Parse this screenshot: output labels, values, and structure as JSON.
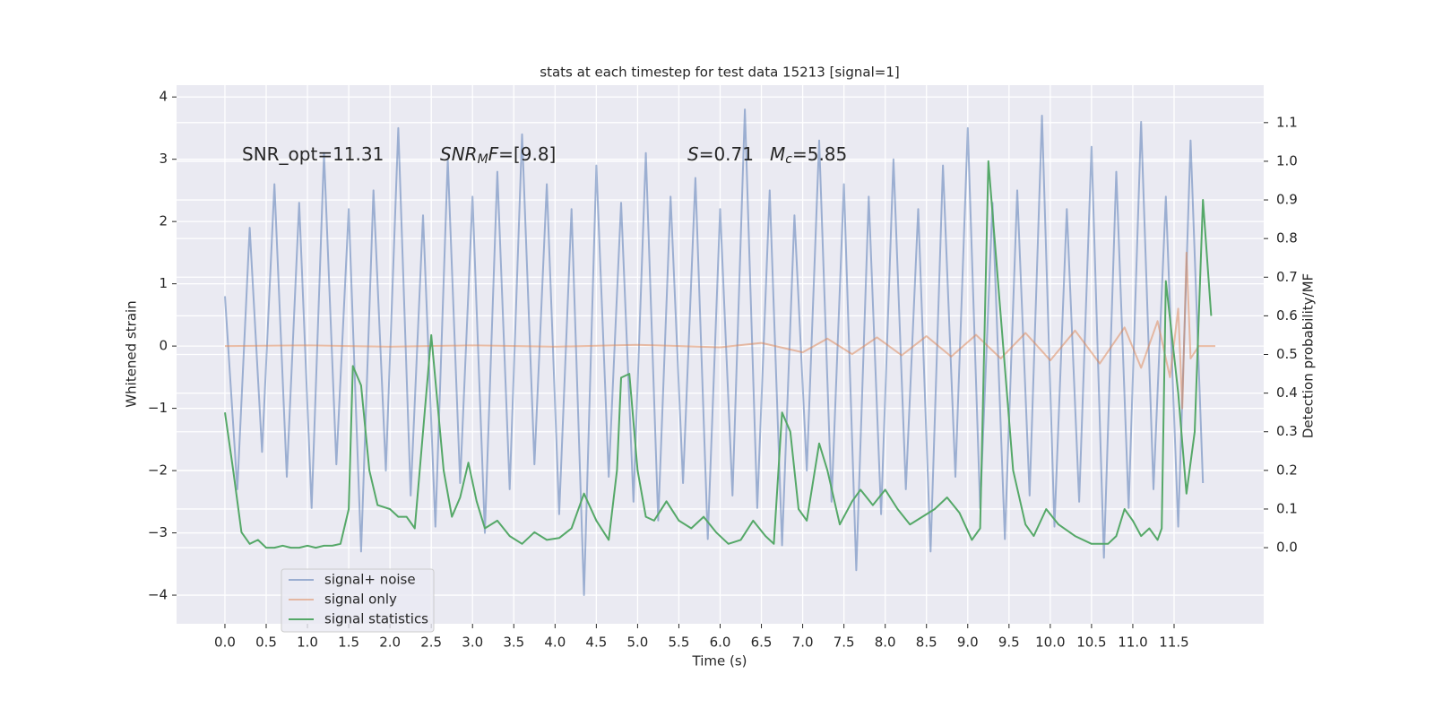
{
  "chart_data": {
    "type": "line",
    "title": "stats at each timestep for test data 15213 [signal=1]",
    "xlabel": "Time (s)",
    "ylabel": "Whitened strain",
    "y2label": "Detection probability/MF",
    "xlim": [
      -0.586,
      12.586
    ],
    "ylim": [
      -4.46,
      4.19
    ],
    "y2lim": [
      -0.197,
      1.197
    ],
    "grid": true,
    "legend": "lower left",
    "xticks": [
      {
        "value": 0,
        "label": "0.0"
      },
      {
        "value": 0.5,
        "label": "0.5"
      },
      {
        "value": 1,
        "label": "1.0"
      },
      {
        "value": 1.5,
        "label": "1.5"
      },
      {
        "value": 2,
        "label": "2.0"
      },
      {
        "value": 2.5,
        "label": "2.5"
      },
      {
        "value": 3,
        "label": "3.0"
      },
      {
        "value": 3.5,
        "label": "3.5"
      },
      {
        "value": 4,
        "label": "4.0"
      },
      {
        "value": 4.5,
        "label": "4.5"
      },
      {
        "value": 5,
        "label": "5.0"
      },
      {
        "value": 5.5,
        "label": "5.5"
      },
      {
        "value": 6,
        "label": "6.0"
      },
      {
        "value": 6.5,
        "label": "6.5"
      },
      {
        "value": 7,
        "label": "7.0"
      },
      {
        "value": 7.5,
        "label": "7.5"
      },
      {
        "value": 8,
        "label": "8.0"
      },
      {
        "value": 8.5,
        "label": "8.5"
      },
      {
        "value": 9,
        "label": "9.0"
      },
      {
        "value": 9.5,
        "label": "9.5"
      },
      {
        "value": 10,
        "label": "10.0"
      },
      {
        "value": 10.5,
        "label": "10.5"
      },
      {
        "value": 11,
        "label": "11.0"
      },
      {
        "value": 11.5,
        "label": "11.5"
      }
    ],
    "yticks": [
      {
        "value": -4,
        "label": "−4"
      },
      {
        "value": -3,
        "label": "−3"
      },
      {
        "value": -2,
        "label": "−2"
      },
      {
        "value": -1,
        "label": "−1"
      },
      0,
      1,
      2,
      3,
      4
    ],
    "y2ticks": [
      {
        "value": 0,
        "label": "0.0"
      },
      {
        "value": 0.1,
        "label": "0.1"
      },
      {
        "value": 0.2,
        "label": "0.2"
      },
      {
        "value": 0.3,
        "label": "0.3"
      },
      {
        "value": 0.4,
        "label": "0.4"
      },
      {
        "value": 0.5,
        "label": "0.5"
      },
      {
        "value": 0.6,
        "label": "0.6"
      },
      {
        "value": 0.7,
        "label": "0.7"
      },
      {
        "value": 0.8,
        "label": "0.8"
      },
      {
        "value": 0.9,
        "label": "0.9"
      },
      {
        "value": 1,
        "label": "1.0"
      },
      {
        "value": 1.1,
        "label": "1.1"
      }
    ],
    "annotations": [
      [
        {
          "text": "SNR_opt=11.31"
        }
      ],
      [
        {
          "text": "SNR",
          "style": "italic"
        },
        {
          "text": "M",
          "style": "sub"
        },
        {
          "text": "F",
          "style": "italic"
        },
        {
          "text": "=[9.8]"
        }
      ],
      [
        {
          "text": "S",
          "style": "italic"
        },
        {
          "text": "=0.71"
        }
      ],
      [
        {
          "text": "M",
          "style": "italic"
        },
        {
          "text": "c",
          "style": "sub"
        },
        {
          "text": "=5.85"
        }
      ]
    ],
    "series": [
      {
        "name": "signal+ noise",
        "color": "#4c72b0",
        "opacity": 0.5,
        "x": [
          0,
          0.15,
          0.3,
          0.45,
          0.6,
          0.75,
          0.9,
          1.05,
          1.2,
          1.35,
          1.5,
          1.65,
          1.8,
          1.95,
          2.1,
          2.25,
          2.4,
          2.55,
          2.7,
          2.85,
          3,
          3.15,
          3.3,
          3.45,
          3.6,
          3.75,
          3.9,
          4.05,
          4.2,
          4.35,
          4.5,
          4.65,
          4.8,
          4.95,
          5.1,
          5.25,
          5.4,
          5.55,
          5.7,
          5.85,
          6,
          6.15,
          6.3,
          6.45,
          6.6,
          6.75,
          6.9,
          7.05,
          7.2,
          7.35,
          7.5,
          7.65,
          7.8,
          7.95,
          8.1,
          8.25,
          8.4,
          8.55,
          8.7,
          8.85,
          9,
          9.15,
          9.3,
          9.45,
          9.6,
          9.75,
          9.9,
          10.05,
          10.2,
          10.35,
          10.5,
          10.65,
          10.8,
          10.95,
          11.1,
          11.25,
          11.4,
          11.55,
          11.7,
          11.85
        ],
        "values": [
          0.8,
          -2.3,
          1.9,
          -1.7,
          2.6,
          -2.1,
          2.3,
          -2.6,
          3.1,
          -1.9,
          2.2,
          -3.3,
          2.5,
          -2.0,
          3.5,
          -2.4,
          2.1,
          -2.9,
          3.0,
          -2.2,
          2.4,
          -3.0,
          2.8,
          -2.3,
          3.4,
          -1.9,
          2.6,
          -2.7,
          2.2,
          -4.0,
          2.9,
          -2.1,
          2.3,
          -2.5,
          3.1,
          -2.8,
          2.4,
          -2.2,
          2.7,
          -3.1,
          2.2,
          -2.4,
          3.8,
          -2.6,
          2.5,
          -3.2,
          2.1,
          -2.0,
          3.3,
          -2.5,
          2.6,
          -3.6,
          2.4,
          -2.7,
          3.0,
          -2.3,
          2.2,
          -3.3,
          2.9,
          -2.1,
          3.5,
          -2.6,
          2.3,
          -3.1,
          2.5,
          -2.4,
          3.7,
          -2.9,
          2.2,
          -2.5,
          3.2,
          -3.4,
          2.8,
          -2.6,
          3.6,
          -2.3,
          2.4,
          -2.9,
          3.3,
          -2.2
        ]
      },
      {
        "name": "signal only",
        "color": "#dd8452",
        "opacity": 0.5,
        "x": [
          0,
          1,
          2,
          3,
          4,
          5,
          6,
          6.5,
          7,
          7.3,
          7.6,
          7.9,
          8.2,
          8.5,
          8.8,
          9.1,
          9.4,
          9.7,
          10,
          10.3,
          10.6,
          10.9,
          11.1,
          11.3,
          11.45,
          11.55,
          11.6,
          11.65,
          11.7,
          11.8,
          12
        ],
        "values": [
          0,
          0.01,
          -0.01,
          0.01,
          -0.01,
          0.02,
          -0.02,
          0.05,
          -0.1,
          0.12,
          -0.13,
          0.14,
          -0.15,
          0.16,
          -0.17,
          0.18,
          -0.2,
          0.21,
          -0.23,
          0.25,
          -0.28,
          0.3,
          -0.35,
          0.4,
          -0.5,
          0.6,
          -1.0,
          1.5,
          -0.2,
          0,
          0
        ]
      },
      {
        "name": "signal statistics",
        "color": "#55a868",
        "opacity": 1,
        "axis": "y2",
        "x": [
          0,
          0.1,
          0.2,
          0.3,
          0.4,
          0.5,
          0.6,
          0.7,
          0.8,
          0.9,
          1,
          1.1,
          1.2,
          1.3,
          1.4,
          1.5,
          1.55,
          1.65,
          1.75,
          1.85,
          2,
          2.1,
          2.2,
          2.3,
          2.5,
          2.65,
          2.75,
          2.85,
          2.95,
          3.05,
          3.15,
          3.3,
          3.45,
          3.6,
          3.75,
          3.9,
          4.05,
          4.2,
          4.35,
          4.5,
          4.65,
          4.75,
          4.8,
          4.9,
          5,
          5.1,
          5.2,
          5.35,
          5.5,
          5.65,
          5.8,
          5.95,
          6.1,
          6.25,
          6.4,
          6.55,
          6.65,
          6.75,
          6.85,
          6.95,
          7.05,
          7.2,
          7.3,
          7.45,
          7.6,
          7.7,
          7.85,
          8,
          8.15,
          8.3,
          8.45,
          8.6,
          8.75,
          8.9,
          9.05,
          9.15,
          9.25,
          9.4,
          9.55,
          9.7,
          9.8,
          9.95,
          10.1,
          10.3,
          10.5,
          10.7,
          10.8,
          10.9,
          11,
          11.1,
          11.2,
          11.3,
          11.35,
          11.4,
          11.55,
          11.65,
          11.75,
          11.85,
          11.95
        ],
        "values": [
          0.35,
          0.2,
          0.04,
          0.01,
          0.02,
          0,
          0,
          0.005,
          0,
          0,
          0.005,
          0,
          0.005,
          0.005,
          0.01,
          0.1,
          0.47,
          0.42,
          0.2,
          0.11,
          0.1,
          0.08,
          0.08,
          0.05,
          0.55,
          0.2,
          0.08,
          0.13,
          0.22,
          0.12,
          0.05,
          0.07,
          0.03,
          0.01,
          0.04,
          0.02,
          0.025,
          0.05,
          0.14,
          0.07,
          0.02,
          0.2,
          0.44,
          0.45,
          0.2,
          0.08,
          0.07,
          0.12,
          0.07,
          0.05,
          0.08,
          0.04,
          0.01,
          0.02,
          0.07,
          0.03,
          0.01,
          0.35,
          0.3,
          0.1,
          0.07,
          0.27,
          0.2,
          0.06,
          0.12,
          0.15,
          0.11,
          0.15,
          0.1,
          0.06,
          0.08,
          0.1,
          0.13,
          0.09,
          0.02,
          0.05,
          1.0,
          0.6,
          0.2,
          0.06,
          0.03,
          0.1,
          0.06,
          0.03,
          0.01,
          0.01,
          0.03,
          0.1,
          0.07,
          0.03,
          0.05,
          0.02,
          0.05,
          0.69,
          0.4,
          0.14,
          0.3,
          0.9,
          0.6
        ]
      }
    ]
  }
}
